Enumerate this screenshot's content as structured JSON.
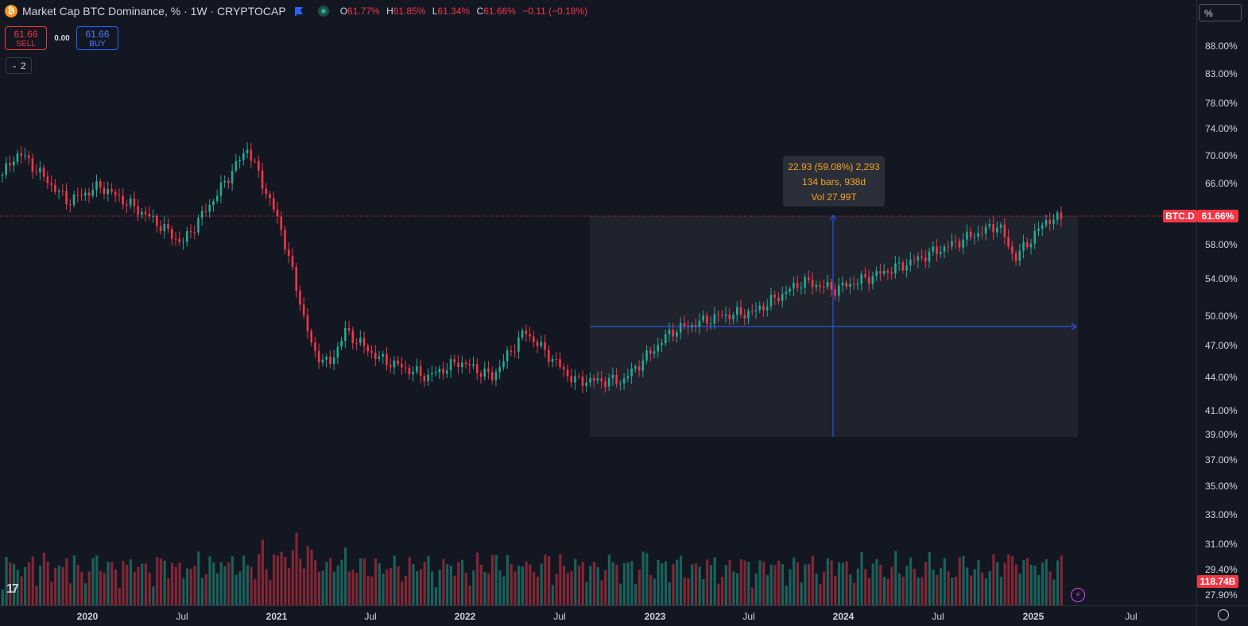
{
  "header": {
    "coin_icon": "bitcoin-icon",
    "title": "Market Cap BTC Dominance, % · 1W · CRYPTOCAP",
    "flag_icon": "flag-icon",
    "live_icon": "live-status-icon",
    "ohlc": [
      {
        "k": "O",
        "v": "61.77%"
      },
      {
        "k": "H",
        "v": "61.85%"
      },
      {
        "k": "L",
        "v": "61.34%"
      },
      {
        "k": "C",
        "v": "61.66%"
      }
    ],
    "change": "−0.11 (−0.18%)"
  },
  "trade": {
    "sell_price": "61.66",
    "sell_label": "SELL",
    "spread": "0.00",
    "buy_price": "61.66",
    "buy_label": "BUY"
  },
  "indicators_toggle": {
    "count": "2",
    "icon": "chevron-down-icon"
  },
  "scale_mode": "%",
  "price_axis": {
    "symbol_tag": "BTC.D",
    "last_price": "61.66%",
    "volume_tag": "118.74B",
    "ticks": [
      "88.00%",
      "83.00%",
      "78.00%",
      "74.00%",
      "70.00%",
      "66.00%",
      "58.00%",
      "54.00%",
      "50.00%",
      "47.00%",
      "44.00%",
      "41.00%",
      "39.00%",
      "37.00%",
      "35.00%",
      "33.00%",
      "31.00%",
      "29.40%",
      "27.90%"
    ]
  },
  "time_axis": {
    "labels": [
      {
        "t": "2020",
        "year": true
      },
      {
        "t": "Jul",
        "year": false
      },
      {
        "t": "2021",
        "year": true
      },
      {
        "t": "Jul",
        "year": false
      },
      {
        "t": "2022",
        "year": true
      },
      {
        "t": "Jul",
        "year": false
      },
      {
        "t": "2023",
        "year": true
      },
      {
        "t": "Jul",
        "year": false
      },
      {
        "t": "2024",
        "year": true
      },
      {
        "t": "Jul",
        "year": false
      },
      {
        "t": "2025",
        "year": true
      },
      {
        "t": "Jul",
        "year": false
      }
    ]
  },
  "measure": {
    "line1": "22.93 (59.08%) 2,293",
    "line2": "134 bars, 938d",
    "line3": "Vol 27.99T"
  },
  "colors": {
    "background": "#131722",
    "up": "#22ab94",
    "down": "#f23645",
    "measure_line": "#2962ff",
    "measure_text": "#f7a51b",
    "tag": "#f23645"
  },
  "chart_data": {
    "type": "candlestick",
    "series": [
      {
        "name": "BTC.D"
      }
    ],
    "keypoints": [
      {
        "date": "2019-10",
        "value": 67.5
      },
      {
        "date": "2019-11",
        "value": 70.5
      },
      {
        "date": "2020-02",
        "value": 64
      },
      {
        "date": "2020-04",
        "value": 66
      },
      {
        "date": "2020-07",
        "value": 62
      },
      {
        "date": "2020-09",
        "value": 58.5
      },
      {
        "date": "2020-11",
        "value": 64.5
      },
      {
        "date": "2021-01",
        "value": 71
      },
      {
        "date": "2021-03",
        "value": 61
      },
      {
        "date": "2021-05",
        "value": 44.5
      },
      {
        "date": "2021-06",
        "value": 42.5
      },
      {
        "date": "2021-07",
        "value": 47
      },
      {
        "date": "2021-09",
        "value": 43.5
      },
      {
        "date": "2021-12",
        "value": 41
      },
      {
        "date": "2022-02",
        "value": 43
      },
      {
        "date": "2022-04",
        "value": 41
      },
      {
        "date": "2022-06",
        "value": 47
      },
      {
        "date": "2022-09",
        "value": 40.5
      },
      {
        "date": "2022-12",
        "value": 40.5
      },
      {
        "date": "2023-03",
        "value": 47
      },
      {
        "date": "2023-06",
        "value": 49
      },
      {
        "date": "2023-08",
        "value": 49.5
      },
      {
        "date": "2023-11",
        "value": 53.5
      },
      {
        "date": "2024-01",
        "value": 52.5
      },
      {
        "date": "2024-05",
        "value": 55.5
      },
      {
        "date": "2024-11",
        "value": 61
      },
      {
        "date": "2024-12",
        "value": 56.5
      },
      {
        "date": "2025-02",
        "value": 61.66
      }
    ],
    "last_value": 61.66,
    "ylabel": "%",
    "log_scale": true,
    "volume_unit": "B",
    "last_volume": 118.74
  }
}
